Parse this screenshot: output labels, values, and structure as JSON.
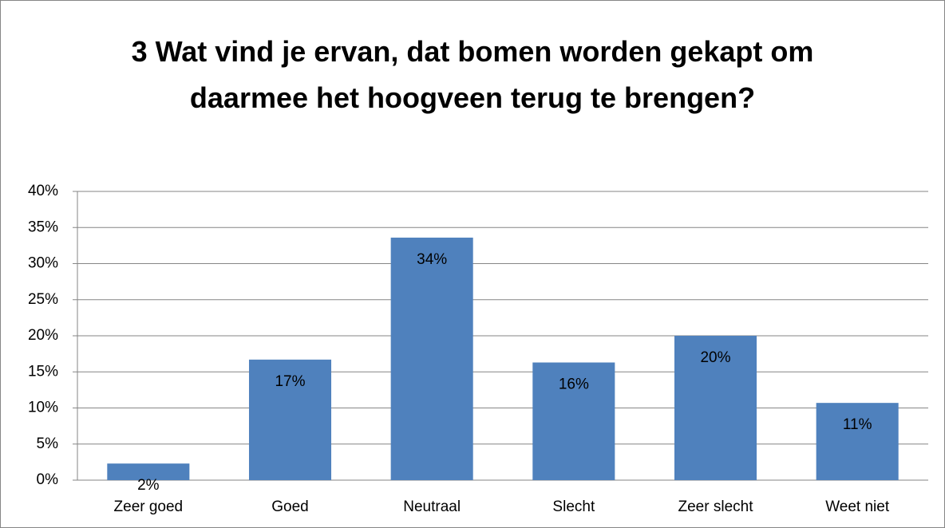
{
  "chart_data": {
    "type": "bar",
    "title": "3 Wat vind je ervan, dat bomen worden gekapt om daarmee het hoogveen terug te brengen?",
    "categories": [
      "Zeer goed",
      "Goed",
      "Neutraal",
      "Slecht",
      "Zeer slecht",
      "Weet niet"
    ],
    "values": [
      2.3,
      16.7,
      33.6,
      16.3,
      20.0,
      10.7
    ],
    "value_labels": [
      "2%",
      "17%",
      "34%",
      "16%",
      "20%",
      "11%"
    ],
    "color": "#4f81bd",
    "ylim": [
      0,
      40
    ],
    "yticks": [
      {
        "value": 0,
        "label": "0%"
      },
      {
        "value": 5,
        "label": "5%"
      },
      {
        "value": 10,
        "label": "10%"
      },
      {
        "value": 15,
        "label": "15%"
      },
      {
        "value": 20,
        "label": "20%"
      },
      {
        "value": 25,
        "label": "25%"
      },
      {
        "value": 30,
        "label": "30%"
      },
      {
        "value": 35,
        "label": "35%"
      },
      {
        "value": 40,
        "label": "40%"
      }
    ],
    "grid": true
  }
}
